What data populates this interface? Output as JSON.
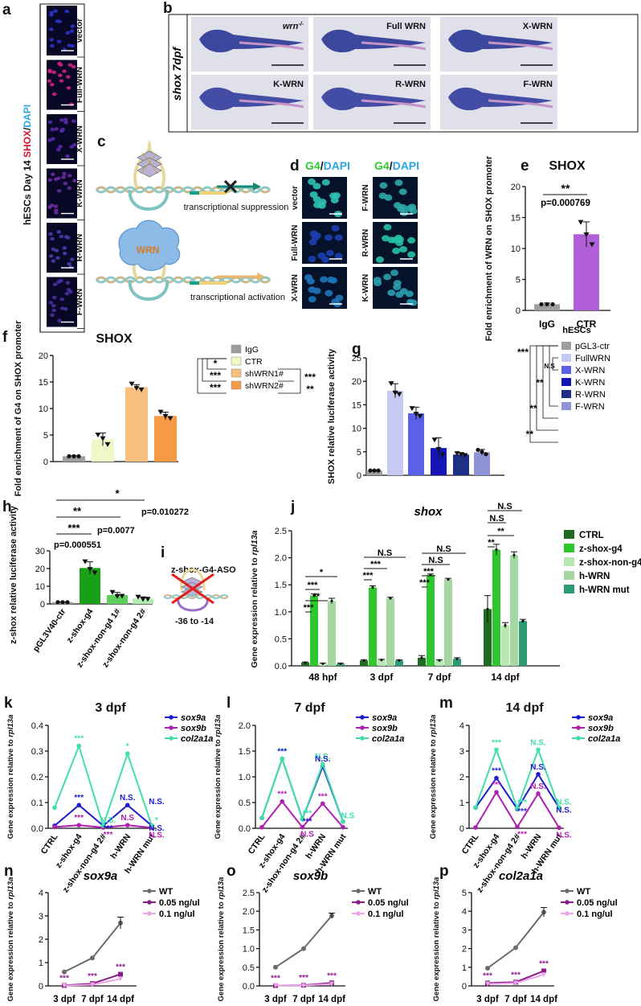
{
  "figure": {
    "a": {
      "label": "a",
      "side_label_parts": [
        "hESCs Day 14 ",
        "SHOX",
        "/",
        "DAPI"
      ],
      "rows": [
        "vector",
        "Full-WRN",
        "X-WRN",
        "K-WRN",
        "R-WRN",
        "F-WRN"
      ]
    },
    "b": {
      "label": "b",
      "side_label": "shox 7dpf",
      "panels": [
        "wrn",
        "Full WRN",
        "X-WRN",
        "K-WRN",
        "R-WRN",
        "F-WRN"
      ],
      "wrn_sup": "-/-"
    },
    "c": {
      "label": "c",
      "top_text": "transcriptional suppression",
      "bottom_text": "transcriptional activation",
      "protein": "WRN"
    },
    "d": {
      "label": "d",
      "col_headers": [
        [
          "G4",
          "/",
          "DAPI"
        ],
        [
          "G4",
          "/",
          "DAPI"
        ]
      ],
      "left_rows": [
        "vector",
        "Full-WRN",
        "X-WRN"
      ],
      "right_rows": [
        "F-WRN",
        "R-WRN",
        "K-WRN"
      ]
    },
    "i": {
      "label": "i",
      "title": "z-shox-G4-ASO",
      "range": "-36 to -14"
    }
  },
  "chart_data": [
    {
      "panel": "e",
      "label": "e",
      "type": "bar",
      "title": "SHOX",
      "ylabel": "Fold enrichment of WRN on SHOX promoter",
      "categories": [
        "IgG",
        "CTR"
      ],
      "values": [
        1.0,
        12.3
      ],
      "errors": [
        0.2,
        2.0
      ],
      "points": [
        [
          1.0,
          1.0,
          1.0
        ],
        [
          14.2,
          12.2,
          10.6
        ]
      ],
      "ylim": [
        0,
        20
      ],
      "yticks": [
        0,
        5,
        10,
        15,
        20
      ],
      "colors": [
        "#9e9e9e",
        "#b05fd6"
      ],
      "sig": [
        "**",
        "p=0.000769"
      ]
    },
    {
      "panel": "f",
      "label": "f",
      "type": "bar",
      "title": "SHOX",
      "ylabel": "Fold enrichment of G4 on SHOX promoter",
      "categories": [
        "IgG",
        "CTR",
        "shWRN1#",
        "shWRN2#"
      ],
      "values": [
        1.0,
        4.2,
        14.0,
        8.6
      ],
      "errors": [
        0.1,
        1.2,
        0.5,
        0.7
      ],
      "points": [
        [
          1.0,
          1.0,
          1.0
        ],
        [
          5.0,
          4.3,
          3.2
        ],
        [
          14.6,
          13.8,
          13.5
        ],
        [
          9.3,
          8.5,
          8.1
        ]
      ],
      "ylim": [
        0,
        20
      ],
      "yticks": [
        0,
        5,
        10,
        15,
        20
      ],
      "colors": [
        "#9e9e9e",
        "#f1f7c6",
        "#f7bf80",
        "#f59a45"
      ],
      "legend": [
        "IgG",
        "CTR",
        "shWRN1#",
        "shWRN2#"
      ],
      "sig_left": [
        "*",
        "***",
        "***"
      ],
      "sig_right": [
        "***",
        "**"
      ]
    },
    {
      "panel": "g",
      "label": "g",
      "type": "bar",
      "ylabel": "SHOX relative luciferase activity",
      "legend_title": "hESCs",
      "categories": [
        "pGL3-ctr",
        "FullWRN",
        "X-WRN",
        "K-WRN",
        "R-WRN",
        "F-WRN"
      ],
      "values": [
        1.0,
        18.0,
        13.2,
        5.8,
        4.4,
        4.9
      ],
      "errors": [
        0.1,
        1.5,
        1.3,
        2.2,
        0.4,
        0.6
      ],
      "points": [
        [
          1.0,
          1.0,
          1.0
        ],
        [
          19.5,
          17.5,
          17.2
        ],
        [
          14.2,
          13.0,
          12.5
        ],
        [
          7.5,
          5.5,
          4.3
        ],
        [
          4.6,
          4.4,
          4.2
        ],
        [
          5.4,
          5.0,
          4.5
        ]
      ],
      "ylim": [
        0,
        25
      ],
      "yticks": [
        0,
        5,
        10,
        15,
        20,
        25
      ],
      "colors": [
        "#9e9e9e",
        "#c6c9f3",
        "#5b60e8",
        "#1515b5",
        "#1e2f86",
        "#8f94d9"
      ],
      "sig": [
        "***",
        "N.S",
        "**",
        "**",
        "**"
      ]
    },
    {
      "panel": "h",
      "label": "h",
      "type": "bar",
      "ylabel": "z-shox relative luciferase activity",
      "categories": [
        "pGL3V40-ctr",
        "z-shox-g4",
        "z-shox-non-g4 1#",
        "z-shox-non-g4 2#"
      ],
      "values": [
        1.0,
        20.3,
        5.0,
        3.0
      ],
      "errors": [
        0.1,
        3.5,
        1.5,
        1.0
      ],
      "points": [
        [
          1.0,
          1.0,
          1.0
        ],
        [
          23.8,
          19.5,
          17.5
        ],
        [
          6.5,
          4.2,
          4.3
        ],
        [
          3.8,
          2.5,
          2.6
        ]
      ],
      "ylim": [
        0,
        30
      ],
      "yticks": [
        0,
        10,
        20,
        30
      ],
      "colors": [
        "#9e9e9e",
        "#18a018",
        "#5ccf5c",
        "#b3ebb3"
      ],
      "sig": [
        "*",
        "p=0.010272",
        "**",
        "p=0.0077",
        "***",
        "p=0.000551"
      ]
    },
    {
      "panel": "j",
      "label": "j",
      "type": "bar",
      "title": "shox",
      "ylabel": "Gene expression relative to rpl13a",
      "groups": [
        "48 hpf",
        "3 dpf",
        "7 dpf",
        "14 dpf"
      ],
      "series": [
        {
          "name": "CTRL",
          "values": [
            0.06,
            0.1,
            0.15,
            1.05
          ],
          "errors": [
            0.01,
            0.01,
            0.04,
            0.25
          ],
          "color": "#1f6b22"
        },
        {
          "name": "z-shox-g4",
          "values": [
            1.3,
            1.45,
            1.68,
            2.15
          ],
          "errors": [
            0.03,
            0.03,
            0.02,
            0.1
          ],
          "color": "#2ec82e"
        },
        {
          "name": "z-shox-non-g4-2#",
          "values": [
            0.04,
            0.11,
            0.1,
            0.75
          ],
          "errors": [
            0.01,
            0.01,
            0.01,
            0.05
          ],
          "color": "#b7e8b1"
        },
        {
          "name": "h-WRN",
          "values": [
            1.2,
            1.25,
            1.6,
            2.05
          ],
          "errors": [
            0.05,
            0.02,
            0.02,
            0.06
          ],
          "color": "#a4d8a0"
        },
        {
          "name": "h-WRN mut",
          "values": [
            0.04,
            0.1,
            0.13,
            0.83
          ],
          "errors": [
            0.01,
            0.01,
            0.02,
            0.03
          ],
          "color": "#2c9a72"
        }
      ],
      "ylim": [
        0,
        2.5
      ],
      "yticks": [
        "0.0",
        "0.5",
        "1.0",
        "1.5",
        "2.0",
        "2.5"
      ],
      "sig": [
        "*",
        "***",
        "**",
        "***",
        "N.S",
        "***",
        "***",
        "N.S",
        "N.S",
        "***",
        "***",
        "N.S",
        "N.S",
        "**",
        "**"
      ]
    },
    {
      "panel": "k",
      "label": "k",
      "type": "line",
      "title": "3 dpf",
      "ylabel": "Gene expression relative to rpl13a",
      "x": [
        "CTRL",
        "z-shox-g4",
        "z-shox-non-g4 2#",
        "h-WRN",
        "h-WRN mut"
      ],
      "series": [
        {
          "name": "sox9a",
          "values": [
            0.01,
            0.09,
            0.01,
            0.09,
            0.01
          ],
          "color": "#1d1dcf"
        },
        {
          "name": "sox9b",
          "values": [
            0.005,
            0.012,
            0.003,
            0.012,
            0.002
          ],
          "color": "#b020b0"
        },
        {
          "name": "col2a1a",
          "values": [
            0.08,
            0.32,
            0.01,
            0.29,
            0.01
          ],
          "color": "#3ee0a8"
        }
      ],
      "ylim": [
        0,
        0.4
      ],
      "yticks": [
        "0.0",
        "0.1",
        "0.2",
        "0.3",
        "0.4"
      ],
      "annotations": [
        "***",
        "***",
        "***",
        "*",
        "N.S.",
        "N.S",
        "N.S.",
        "***",
        "***",
        "*",
        "N.S.",
        "N.S.",
        "N.S."
      ]
    },
    {
      "panel": "l",
      "label": "l",
      "type": "line",
      "title": "7 dpf",
      "ylabel": "Gene expression relative to rpl13a",
      "x": [
        "CTRL",
        "z-shox-g4",
        "z-shox-non-g4 2#",
        "h-WRN",
        "h-WRN mut"
      ],
      "series": [
        {
          "name": "sox9a",
          "values": [
            0.2,
            1.35,
            0.18,
            1.2,
            0.13
          ],
          "color": "#1d1dcf"
        },
        {
          "name": "sox9b",
          "values": [
            0.02,
            0.52,
            0.02,
            0.48,
            0.02
          ],
          "color": "#b020b0"
        },
        {
          "name": "col2a1a",
          "values": [
            0.2,
            1.35,
            0.18,
            1.25,
            0.13
          ],
          "color": "#3ee0a8"
        }
      ],
      "ylim": [
        0,
        2.0
      ],
      "yticks": [
        "0.0",
        "0.5",
        "1.0",
        "1.5",
        "2.0"
      ],
      "annotations": [
        "***",
        "***",
        "***",
        "N.S.",
        "N.S.",
        "***",
        "***",
        "***",
        "N.S",
        "N.S"
      ]
    },
    {
      "panel": "m",
      "label": "m",
      "type": "line",
      "title": "14 dpf",
      "ylabel": "Gene expression relative to rpl13a",
      "x": [
        "CTRL",
        "z-shox-g4",
        "z-shox-non-g4 2#",
        "h-WRN",
        "h-WRN mut"
      ],
      "series": [
        {
          "name": "sox9a",
          "values": [
            0.8,
            1.95,
            0.75,
            2.1,
            0.8
          ],
          "color": "#1d1dcf"
        },
        {
          "name": "sox9b",
          "values": [
            0.03,
            1.4,
            0.05,
            1.35,
            0.02
          ],
          "color": "#b020b0"
        },
        {
          "name": "col2a1a",
          "values": [
            0.8,
            3.05,
            0.78,
            3.05,
            0.8
          ],
          "color": "#3ee0a8"
        }
      ],
      "ylim": [
        0,
        4
      ],
      "yticks": [
        "0",
        "1",
        "2",
        "3",
        "4"
      ],
      "annotations": [
        "***",
        "***",
        "***",
        "N.S.",
        "N.S.",
        "N.S.",
        "***",
        "***",
        "***",
        "N.S.",
        "N.S.",
        "N.S."
      ]
    },
    {
      "panel": "n",
      "label": "n",
      "type": "line",
      "title": "sox9a",
      "ylabel": "Gene expression relative to rpl13a",
      "x": [
        "3 dpf",
        "7 dpf",
        "14 dpf"
      ],
      "series": [
        {
          "name": "WT",
          "values": [
            0.6,
            1.2,
            2.7
          ],
          "color": "#6b6b6b"
        },
        {
          "name": "0.05 ng/ul",
          "values": [
            0.02,
            0.1,
            0.5
          ],
          "color": "#8b1c8b"
        },
        {
          "name": "0.1 ng/ul",
          "values": [
            0.01,
            0.05,
            0.3
          ],
          "color": "#e8a6e8"
        }
      ],
      "ylim": [
        0,
        4
      ],
      "yticks": [
        "0",
        "1",
        "2",
        "3",
        "4"
      ],
      "annotations": [
        "***",
        "***",
        "***"
      ]
    },
    {
      "panel": "o",
      "label": "o",
      "type": "line",
      "title": "sox9b",
      "ylabel": "Gene expression relative to rpl13a",
      "x": [
        "3 dpf",
        "7 dpf",
        "14 dpf"
      ],
      "series": [
        {
          "name": "WT",
          "values": [
            0.5,
            1.0,
            1.88
          ],
          "color": "#6b6b6b"
        },
        {
          "name": "0.05 ng/ul",
          "values": [
            0.01,
            0.02,
            0.08
          ],
          "color": "#8b1c8b"
        },
        {
          "name": "0.1 ng/ul",
          "values": [
            0.01,
            0.01,
            0.05
          ],
          "color": "#e8a6e8"
        }
      ],
      "ylim": [
        0,
        2.5
      ],
      "yticks": [
        "0.0",
        "0.5",
        "1.0",
        "1.5",
        "2.0",
        "2.5"
      ],
      "annotations": [
        "***",
        "***",
        "***"
      ]
    },
    {
      "panel": "p",
      "label": "p",
      "type": "line",
      "title": "col2a1a",
      "ylabel": "Gene expression relative to rpl13a",
      "x": [
        "3 dpf",
        "7 dpf",
        "14 dpf"
      ],
      "series": [
        {
          "name": "WT",
          "values": [
            0.95,
            2.05,
            3.95
          ],
          "color": "#6b6b6b"
        },
        {
          "name": "0.05 ng/ul",
          "values": [
            0.15,
            0.2,
            0.8
          ],
          "color": "#8b1c8b"
        },
        {
          "name": "0.1 ng/ul",
          "values": [
            0.1,
            0.15,
            0.6
          ],
          "color": "#e8a6e8"
        }
      ],
      "ylim": [
        0,
        5
      ],
      "yticks": [
        "0",
        "1",
        "2",
        "3",
        "4",
        "5"
      ],
      "annotations": [
        "***",
        "***",
        "***"
      ]
    }
  ]
}
